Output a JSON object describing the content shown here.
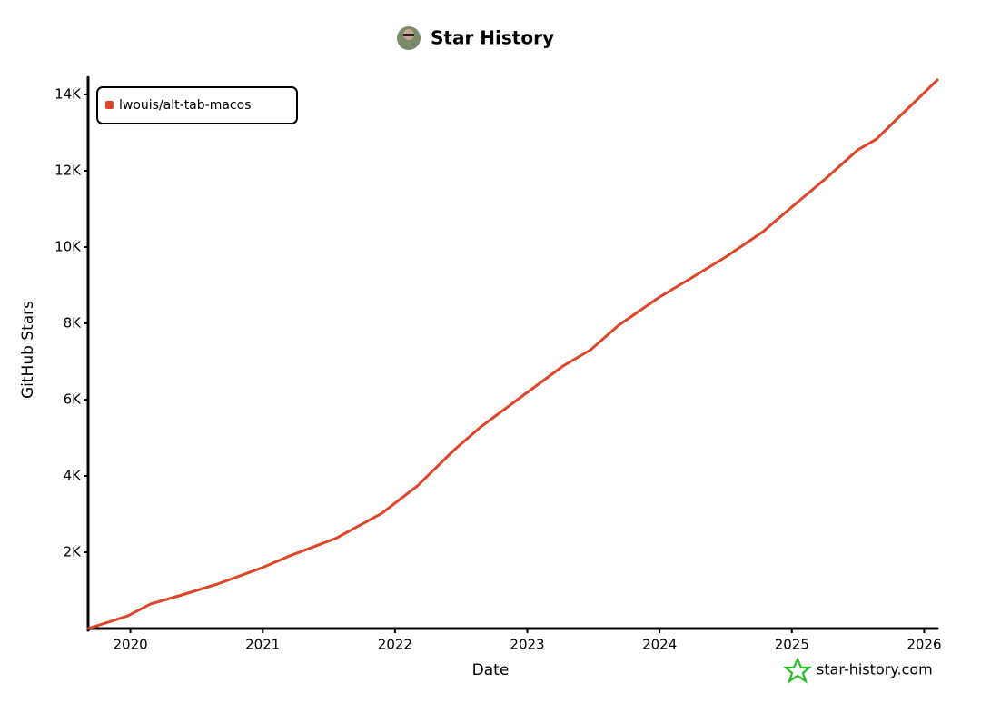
{
  "chart_data": {
    "type": "line",
    "title": "Star History",
    "x_label": "Date",
    "y_label": "GitHub Stars",
    "watermark": "star-history.com",
    "legend": "top-left",
    "x": [
      2019.68,
      2019.98,
      2020.15,
      2020.39,
      2020.66,
      2021.0,
      2021.2,
      2021.55,
      2021.9,
      2022.17,
      2022.45,
      2022.65,
      2023.0,
      2023.27,
      2023.48,
      2023.69,
      2024.0,
      2024.23,
      2024.5,
      2024.78,
      2025.0,
      2025.26,
      2025.5,
      2025.64,
      2025.78,
      2026.1
    ],
    "series": [
      {
        "name": "lwouis/alt-tab-macos",
        "color": "#dd4528",
        "values": [
          0,
          330,
          640,
          880,
          1170,
          1600,
          1900,
          2360,
          3020,
          3740,
          4690,
          5290,
          6190,
          6880,
          7310,
          7950,
          8690,
          9170,
          9740,
          10400,
          11050,
          11810,
          12550,
          12830,
          13310,
          14380
        ]
      }
    ],
    "xlim": [
      2019.68,
      2026.1
    ],
    "xticks": [
      2020,
      2021,
      2022,
      2023,
      2024,
      2025,
      2026
    ],
    "ylim": [
      0,
      14400
    ],
    "yticks": [
      {
        "value": 2000,
        "label": "2K"
      },
      {
        "value": 4000,
        "label": "4K"
      },
      {
        "value": 6000,
        "label": "6K"
      },
      {
        "value": 8000,
        "label": "8K"
      },
      {
        "value": 10000,
        "label": "10K"
      },
      {
        "value": 12000,
        "label": "12K"
      },
      {
        "value": 14000,
        "label": "14K"
      }
    ]
  }
}
